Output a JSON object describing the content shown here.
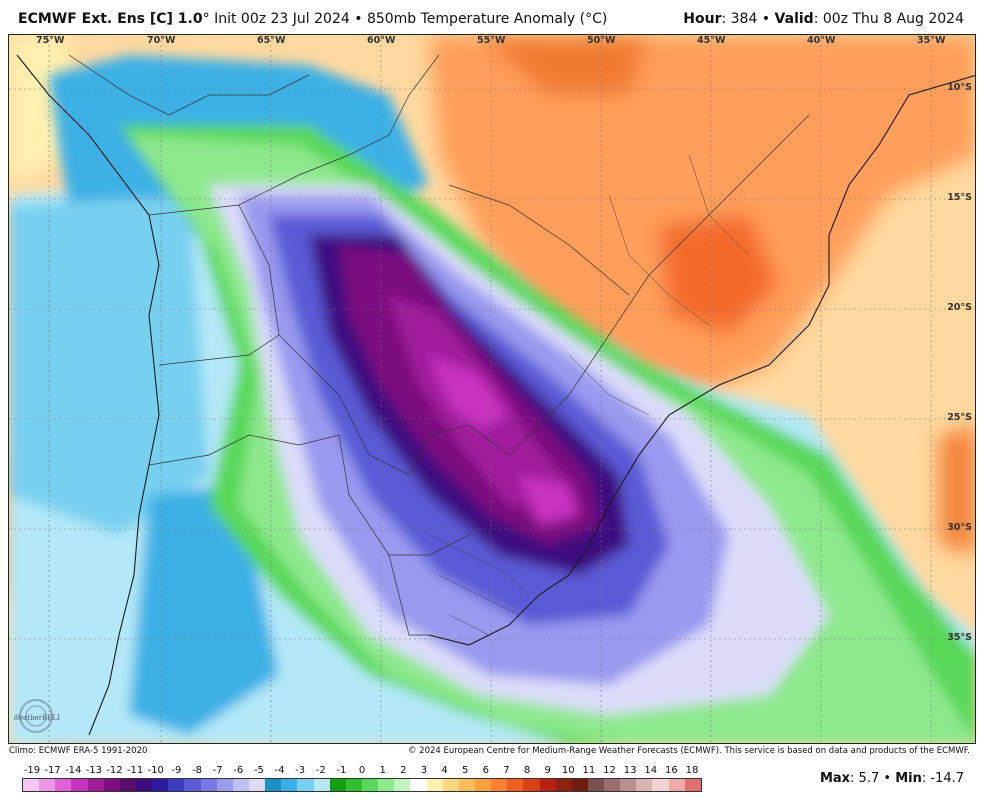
{
  "header": {
    "model": "ECMWF Ext. Ens [C] 1.0",
    "degree_symbol": "°",
    "init": "Init 00z 23 Jul 2024",
    "separator": "•",
    "field": "850mb Temperature Anomaly (°C)",
    "hour_label": "Hour",
    "hour_value": ": 384",
    "valid_label": "Valid",
    "valid_value": ": 00z Thu 8 Aug 2024"
  },
  "map": {
    "longitude_labels": [
      "75°W",
      "70°W",
      "65°W",
      "60°W",
      "55°W",
      "50°W",
      "45°W",
      "40°W",
      "35°W"
    ],
    "latitude_labels": [
      "10°S",
      "15°S",
      "20°S",
      "25°S",
      "30°S",
      "35°S"
    ],
    "logo_text": "WeatherBELL"
  },
  "footer": {
    "climo": "Climo: ECMWF ERA-5 1991-2020",
    "copyright": "© 2024 European Centre for Medium-Range Weather Forecasts (ECMWF). This service is based on data and products of the ECMWF."
  },
  "colorbar": {
    "labels": [
      "-19",
      "-17",
      "-14",
      "-13",
      "-12",
      "-11",
      "-10",
      "-9",
      "-8",
      "-7",
      "-6",
      "-5",
      "-4",
      "-3",
      "-2",
      "-1",
      "0",
      "1",
      "2",
      "3",
      "4",
      "5",
      "6",
      "7",
      "8",
      "9",
      "10",
      "11",
      "12",
      "13",
      "14",
      "16",
      "18"
    ],
    "colors": [
      "#f7c6f2",
      "#ee96e6",
      "#e060d6",
      "#c832c0",
      "#a01c9c",
      "#7c1080",
      "#5a0c6a",
      "#3c0c80",
      "#2e1aa0",
      "#3c3cc0",
      "#5a5ad6",
      "#7878e6",
      "#9a9af0",
      "#bebef8",
      "#dcdcfa",
      "#1e90c8",
      "#3cb0e6",
      "#78d0f0",
      "#b4e8f8",
      "#12a012",
      "#30c030",
      "#5ad85a",
      "#8ee88e",
      "#c2f4c2",
      "#ffffff",
      "#fff0b0",
      "#ffd680",
      "#ffbc5a",
      "#ffa040",
      "#ff8030",
      "#f06020",
      "#d84018",
      "#b82010",
      "#902010",
      "#6e1c10",
      "#785050",
      "#9a6e6e",
      "#b89090",
      "#d8b4b4",
      "#f2d2d2",
      "#f0a8a8",
      "#e07070"
    ]
  },
  "stats": {
    "max_label": "Max",
    "max_value": ": 5.7",
    "separator": "•",
    "min_label": "Min",
    "min_value": ": -14.7"
  }
}
